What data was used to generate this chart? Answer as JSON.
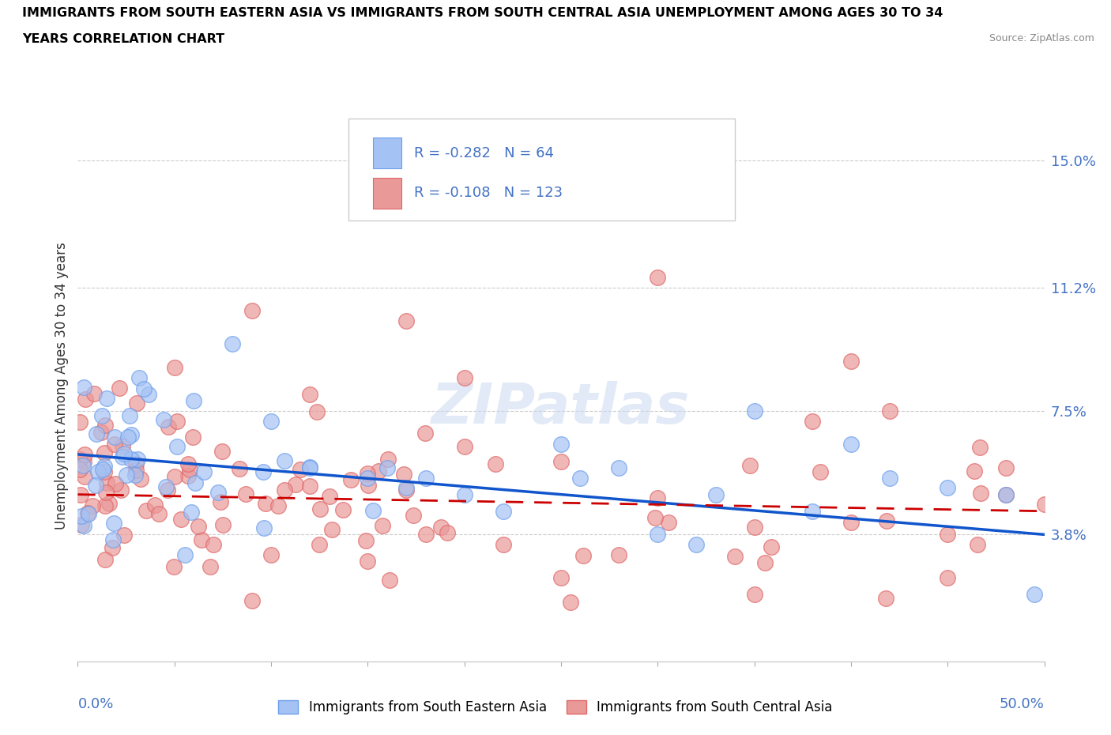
{
  "title_line1": "IMMIGRANTS FROM SOUTH EASTERN ASIA VS IMMIGRANTS FROM SOUTH CENTRAL ASIA UNEMPLOYMENT AMONG AGES 30 TO 34",
  "title_line2": "YEARS CORRELATION CHART",
  "source_text": "Source: ZipAtlas.com",
  "ylabel": "Unemployment Among Ages 30 to 34 years",
  "ytick_values": [
    3.8,
    7.5,
    11.2,
    15.0
  ],
  "legend_blue_label": "Immigrants from South Eastern Asia",
  "legend_pink_label": "Immigrants from South Central Asia",
  "blue_R": -0.282,
  "blue_N": 64,
  "pink_R": -0.108,
  "pink_N": 123,
  "blue_color": "#a4c2f4",
  "pink_color": "#ea9999",
  "blue_edge_color": "#6d9eeb",
  "pink_edge_color": "#e06666",
  "blue_line_color": "#1155cc",
  "pink_line_color": "#cc0000",
  "watermark": "ZIPatlas",
  "tick_label_color": "#4472c4"
}
